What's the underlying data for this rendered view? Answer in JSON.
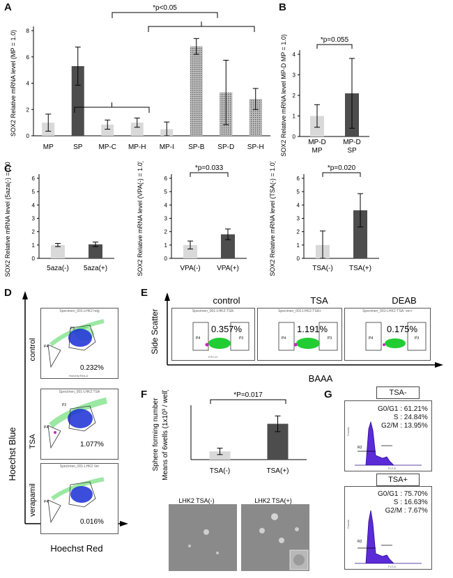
{
  "panel_letters": [
    "A",
    "B",
    "C",
    "D",
    "E",
    "F",
    "G"
  ],
  "colors": {
    "light": "#d9d9d9",
    "dark": "#4d4d4d",
    "axis": "#000000",
    "flow_green": "#22cc33",
    "flow_blue": "#1a2ed6",
    "flow_magenta": "#cc22cc",
    "hist_fill": "#5b2bd8"
  },
  "chart_data": [
    {
      "id": "A",
      "type": "bar",
      "ylabel": "SOX2 Relative mRNA level (MP = 1.0)",
      "ylim": [
        0,
        8
      ],
      "yticks": [
        0,
        2,
        4,
        6,
        8
      ],
      "categories": [
        "MP",
        "SP",
        "MP-C",
        "MP-H",
        "MP-I",
        "SP-B",
        "SP-D",
        "SP-H"
      ],
      "values": [
        1.0,
        5.3,
        0.85,
        1.0,
        0.5,
        6.8,
        3.3,
        2.8
      ],
      "errors": [
        0.65,
        1.45,
        0.35,
        0.35,
        0.55,
        0.6,
        2.45,
        0.8
      ],
      "fills": [
        "light",
        "dark",
        "light",
        "light",
        "light",
        "dots",
        "dots",
        "dots"
      ],
      "annotation": "*p<0.05"
    },
    {
      "id": "B",
      "type": "bar",
      "ylabel": "SOX2 Relative mRNA level MP-D MP = 1.0)",
      "ylim": [
        0,
        4
      ],
      "yticks": [
        0,
        1,
        2,
        3,
        4
      ],
      "categories": [
        [
          "MP-D",
          "MP"
        ],
        [
          "MP-D",
          "SP"
        ]
      ],
      "values": [
        1.0,
        2.1
      ],
      "errors": [
        0.55,
        1.7
      ],
      "fills": [
        "light",
        "dark"
      ],
      "annotation": "*p=0.055"
    },
    {
      "id": "C1",
      "type": "bar",
      "ylabel": "SOX2 Relative mRNA level (5aza(-) = 1.0)",
      "ylim": [
        0,
        6
      ],
      "yticks": [
        0,
        1,
        2,
        3,
        4,
        5,
        6
      ],
      "categories": [
        "5aza(-)",
        "5aza(+)"
      ],
      "values": [
        1.0,
        1.05
      ],
      "errors": [
        0.12,
        0.17
      ],
      "fills": [
        "light",
        "dark"
      ],
      "annotation": ""
    },
    {
      "id": "C2",
      "type": "bar",
      "ylabel": "SOX2 Relative mRNA level (VPA(-) = 1.0)",
      "ylim": [
        0,
        6
      ],
      "yticks": [
        0,
        1,
        2,
        3,
        4,
        5,
        6
      ],
      "categories": [
        "VPA(-)",
        "VPA(+)"
      ],
      "values": [
        1.0,
        1.8
      ],
      "errors": [
        0.3,
        0.4
      ],
      "fills": [
        "light",
        "dark"
      ],
      "annotation": "*p=0.033"
    },
    {
      "id": "C3",
      "type": "bar",
      "ylabel": "SOX2 Relative mRNA level (TSA(-) = 1.0)",
      "ylim": [
        0,
        6
      ],
      "yticks": [
        0,
        1,
        2,
        3,
        4,
        5,
        6
      ],
      "categories": [
        "TSA(-)",
        "TSA(+)"
      ],
      "values": [
        1.0,
        3.6
      ],
      "errors": [
        1.05,
        1.25
      ],
      "fills": [
        "light",
        "dark"
      ],
      "annotation": "*p=0.020"
    },
    {
      "id": "F",
      "type": "bar",
      "ylabel_line1": "Sphere forming number",
      "ylabel_line2": "Means of 6wells (1x10³ / well)",
      "ylim": [
        0,
        7
      ],
      "categories": [
        "TSA(-)",
        "TSA(+)"
      ],
      "values": [
        1.15,
        5.0
      ],
      "errors": [
        0.45,
        1.1
      ],
      "fills": [
        "light",
        "dark"
      ],
      "annotation": "*P=0.017"
    }
  ],
  "panel_d": {
    "y_axis_label": "Hoechst  Blue",
    "x_axis_label": "Hoechst  Red",
    "rows": [
      {
        "label": "control",
        "specimen": "Specimen_001-LHK2 hdg",
        "percent": "0.232%"
      },
      {
        "label": "TSA",
        "specimen": "Specimen_001-LHK2 TSA",
        "percent": "1.077%"
      },
      {
        "label": "verapamil",
        "specimen": "Specimen_001-LHK2 Ver",
        "percent": "0.016%"
      }
    ],
    "plot_axis_x": "Hoechst Red-A",
    "plot_axis_y": "Hoechst Blue-A",
    "gate_main": "P3",
    "gate_small": "P4",
    "gate_top": "P2"
  },
  "panel_e": {
    "y_axis_label": "Side Scatter",
    "x_axis_label": "BAAA",
    "plots": [
      {
        "title": "control",
        "specimen": "Specimen_001-LHK2-TSA-",
        "percent": "0.357%"
      },
      {
        "title": "TSA",
        "specimen": "Specimen_001-LHK2-TSA+",
        "percent": "1.191%"
      },
      {
        "title": "DEAB",
        "specimen": "Specimen_001-LHK2-TSA- ver+",
        "percent": "0.175%"
      }
    ],
    "gate_left": "P4",
    "gate_right": "P3",
    "axis_x": "FITC-H",
    "axis_y": "SSC-H"
  },
  "panel_f_images": [
    "LHK2 TSA(-)",
    "LHK2 TSA(+)"
  ],
  "panel_g": [
    {
      "title": "TSA-",
      "g0g1": "G0/G1 : 61.21%",
      "s": "S : 24.84%",
      "g2m": "G2/M : 13.95%",
      "gate": "R2",
      "xlabel": "FL2-A",
      "ylabel": "Counts"
    },
    {
      "title": "TSA+",
      "g0g1": "G0/G1 : 75.70%",
      "s": "S : 16.63%",
      "g2m": "G2/M : 7.67%",
      "gate": "R2",
      "xlabel": "FL2-A",
      "ylabel": "Counts"
    }
  ]
}
